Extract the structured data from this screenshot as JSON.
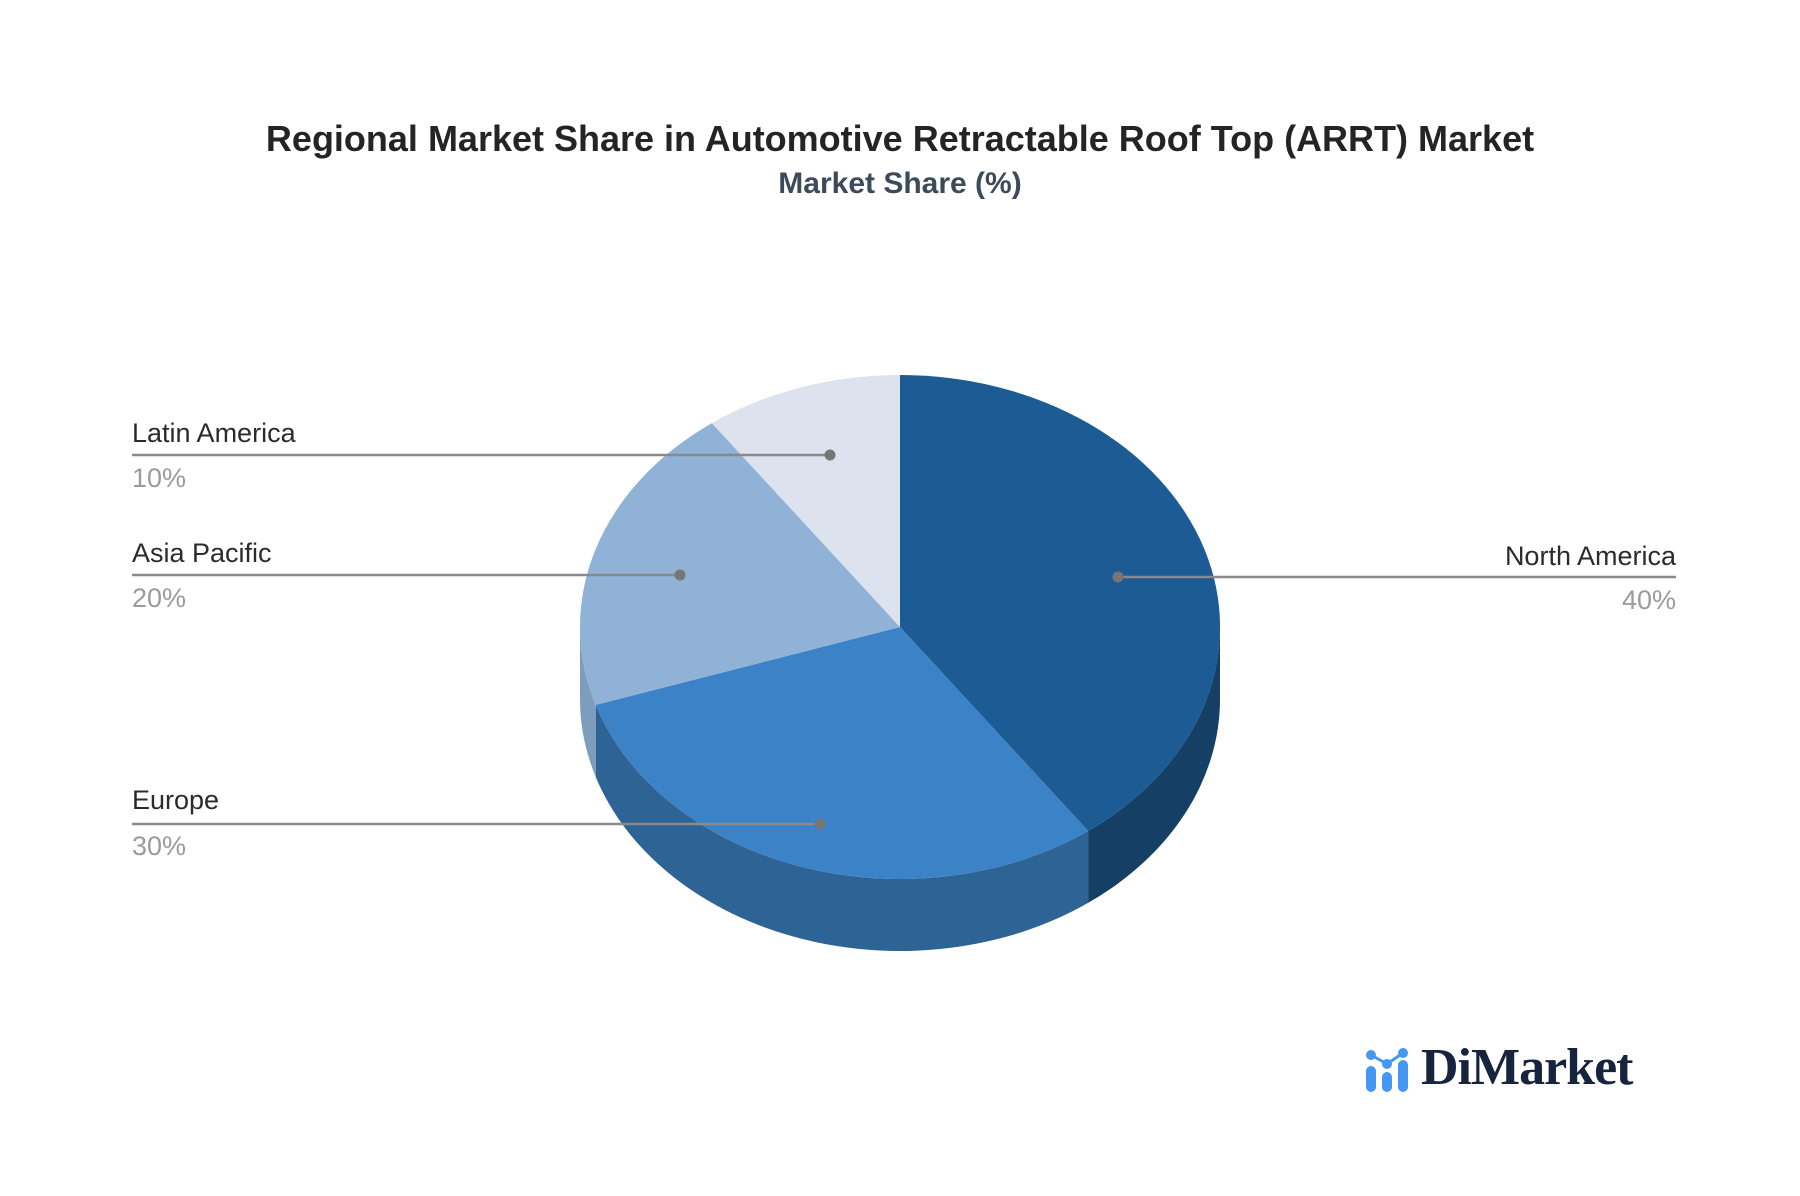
{
  "title": "Regional Market Share in Automotive Retractable Roof Top (ARRT) Market",
  "subtitle": "Market Share (%)",
  "chart_data": {
    "type": "pie",
    "style": "3d",
    "title": "Regional Market Share in Automotive Retractable Roof Top (ARRT) Market",
    "subtitle": "Market Share (%)",
    "categories": [
      "North America",
      "Europe",
      "Asia Pacific",
      "Latin America"
    ],
    "values": [
      40,
      30,
      20,
      10
    ],
    "value_labels": [
      "40%",
      "30%",
      "20%",
      "10%"
    ],
    "unit": "%",
    "start_angle_deg": 0,
    "direction": "clockwise",
    "legend_position": "callout-labels",
    "colors": [
      "#1d5b94",
      "#3b82c6",
      "#90b2d7",
      "#dce3ee"
    ],
    "side_colors": [
      "#163f66",
      "#2e6495",
      "#7e9cbc",
      "#c9d2e0"
    ],
    "leader_line_color": "#8a8a8a",
    "leader_dot_color": "#767676"
  },
  "logo": {
    "text": "DiMarket",
    "icon": "bar-line-chart-icon",
    "icon_color": "#4598f2",
    "text_color": "#16243d"
  }
}
